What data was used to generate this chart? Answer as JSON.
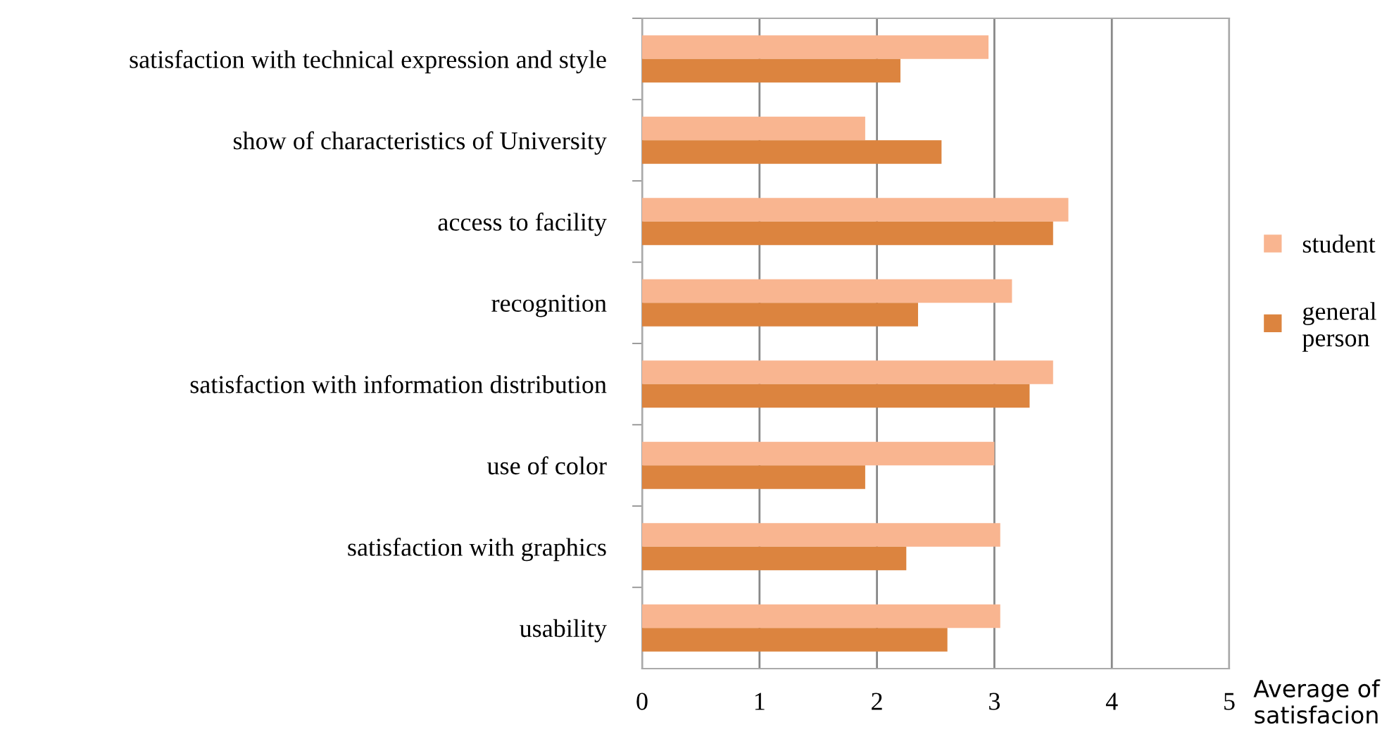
{
  "chart_data": {
    "type": "bar",
    "orientation": "horizontal",
    "xlabel": "Average of\nsatisfacion",
    "categories": [
      "satisfaction with technical expression and style",
      "show of characteristics of University",
      "access to facility",
      "recognition",
      "satisfaction with information distribution",
      "use of color",
      "satisfaction with graphics",
      "usability"
    ],
    "series": [
      {
        "name": "student",
        "color": "#f9b590",
        "values": [
          2.95,
          1.9,
          3.63,
          3.15,
          3.5,
          3.0,
          3.05,
          3.05
        ]
      },
      {
        "name": "general person",
        "color": "#dc843f",
        "values": [
          2.2,
          2.55,
          3.5,
          2.35,
          3.3,
          1.9,
          2.25,
          2.6
        ]
      }
    ],
    "xlim": [
      0,
      5
    ],
    "xticks": [
      0,
      1,
      2,
      3,
      4,
      5
    ],
    "grid": "x",
    "legend": "right"
  }
}
